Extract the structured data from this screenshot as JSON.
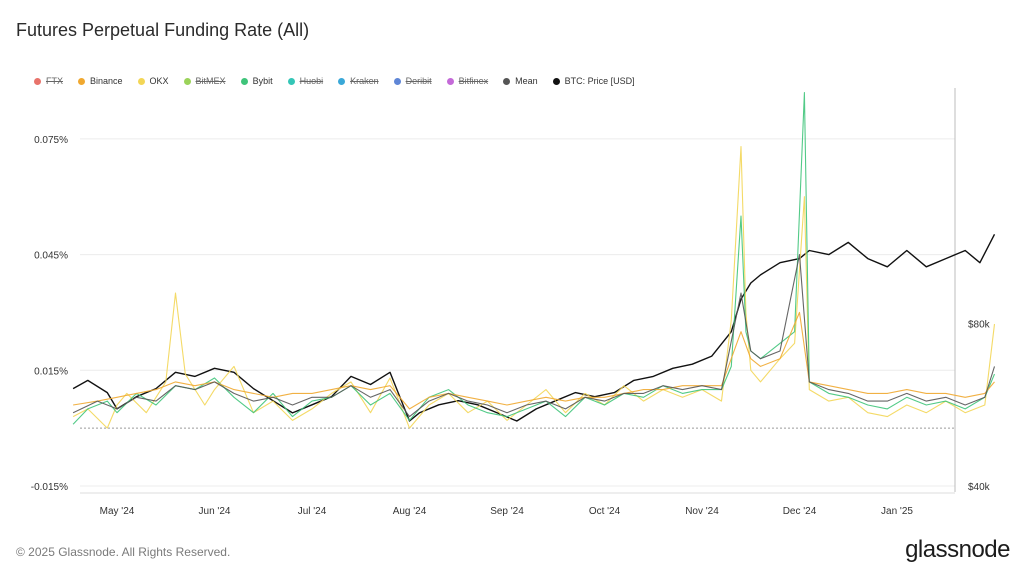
{
  "title": "Futures Perpetual Funding Rate (All)",
  "legend": [
    {
      "label": "FTX",
      "color": "#e8736b",
      "struck": true
    },
    {
      "label": "Binance",
      "color": "#f0a830",
      "struck": false
    },
    {
      "label": "OKX",
      "color": "#f3d656",
      "struck": false
    },
    {
      "label": "BitMEX",
      "color": "#9bd35a",
      "struck": true
    },
    {
      "label": "Bybit",
      "color": "#3fc47a",
      "struck": false
    },
    {
      "label": "Huobi",
      "color": "#34c6b7",
      "struck": true
    },
    {
      "label": "Kraken",
      "color": "#3aa8d8",
      "struck": true
    },
    {
      "label": "Deribit",
      "color": "#5f86d6",
      "struck": true
    },
    {
      "label": "Bitfinex",
      "color": "#c46ad8",
      "struck": true
    },
    {
      "label": "Mean",
      "color": "#555555",
      "struck": false
    },
    {
      "label": "BTC: Price [USD]",
      "color": "#111111",
      "struck": false
    }
  ],
  "footer": "© 2025 Glassnode. All Rights Reserved.",
  "brand": "glassnode",
  "chart_data": {
    "type": "line",
    "x_labels": [
      "May '24",
      "Jun '24",
      "Jul '24",
      "Aug '24",
      "Sep '24",
      "Oct '24",
      "Nov '24",
      "Dec '24",
      "Jan '25"
    ],
    "y_left_ticks": [
      "0.075%",
      "0.045%",
      "0.015%",
      "-0.015%"
    ],
    "y_left_values": [
      0.075,
      0.045,
      0.015,
      -0.015
    ],
    "y_left_range": [
      -0.015,
      0.09
    ],
    "y_right_ticks": [
      "$80k",
      "$40k"
    ],
    "y_right_values": [
      80000,
      40000
    ],
    "y_right_range": [
      40000,
      140000
    ],
    "x_range": [
      0,
      9.1
    ],
    "zero_line": 0.0,
    "series": [
      {
        "name": "BTC: Price [USD]",
        "axis": "right",
        "color": "#111111",
        "x": [
          -0.45,
          -0.3,
          -0.1,
          0.0,
          0.2,
          0.4,
          0.6,
          0.8,
          1.0,
          1.2,
          1.4,
          1.6,
          1.8,
          2.0,
          2.2,
          2.4,
          2.6,
          2.8,
          3.0,
          3.1,
          3.3,
          3.5,
          3.7,
          3.9,
          4.1,
          4.3,
          4.5,
          4.7,
          4.9,
          5.1,
          5.3,
          5.5,
          5.7,
          5.9,
          6.1,
          6.3,
          6.4,
          6.5,
          6.6,
          6.8,
          7.0,
          7.1,
          7.3,
          7.5,
          7.7,
          7.9,
          8.1,
          8.3,
          8.5,
          8.7,
          8.85,
          9.0
        ],
        "y": [
          64000,
          66000,
          63000,
          59000,
          62000,
          64000,
          68000,
          67000,
          69000,
          68000,
          64000,
          61000,
          58000,
          60000,
          62000,
          67000,
          65000,
          68000,
          56000,
          58000,
          60000,
          61000,
          60000,
          58000,
          56000,
          59000,
          61000,
          63000,
          62000,
          63000,
          66000,
          67000,
          69000,
          70000,
          72000,
          78000,
          86000,
          90000,
          92000,
          95000,
          96000,
          98000,
          97000,
          100000,
          96000,
          94000,
          98000,
          94000,
          96000,
          98000,
          95000,
          102000
        ]
      },
      {
        "name": "OKX",
        "axis": "left",
        "color": "#f3d656",
        "x": [
          -0.45,
          -0.3,
          -0.1,
          0.0,
          0.1,
          0.3,
          0.5,
          0.6,
          0.7,
          0.9,
          1.0,
          1.2,
          1.4,
          1.6,
          1.8,
          2.0,
          2.2,
          2.4,
          2.6,
          2.8,
          3.0,
          3.2,
          3.4,
          3.6,
          3.8,
          4.0,
          4.2,
          4.4,
          4.6,
          4.8,
          5.0,
          5.2,
          5.4,
          5.6,
          5.8,
          6.0,
          6.2,
          6.3,
          6.4,
          6.45,
          6.5,
          6.6,
          6.8,
          6.95,
          7.05,
          7.1,
          7.3,
          7.5,
          7.7,
          7.9,
          8.1,
          8.3,
          8.5,
          8.7,
          8.9,
          9.0
        ],
        "y": [
          0.003,
          0.005,
          0.0,
          0.006,
          0.009,
          0.004,
          0.012,
          0.035,
          0.014,
          0.006,
          0.01,
          0.016,
          0.004,
          0.007,
          0.002,
          0.005,
          0.009,
          0.012,
          0.004,
          0.013,
          0.0,
          0.006,
          0.009,
          0.004,
          0.007,
          0.002,
          0.006,
          0.01,
          0.004,
          0.009,
          0.006,
          0.011,
          0.007,
          0.01,
          0.008,
          0.01,
          0.007,
          0.028,
          0.073,
          0.03,
          0.015,
          0.012,
          0.018,
          0.022,
          0.06,
          0.01,
          0.007,
          0.008,
          0.004,
          0.003,
          0.006,
          0.004,
          0.007,
          0.004,
          0.006,
          0.027
        ]
      },
      {
        "name": "Bybit",
        "axis": "left",
        "color": "#3fc47a",
        "x": [
          -0.45,
          -0.3,
          -0.1,
          0.0,
          0.2,
          0.4,
          0.6,
          0.8,
          1.0,
          1.2,
          1.4,
          1.6,
          1.8,
          2.0,
          2.2,
          2.4,
          2.6,
          2.8,
          3.0,
          3.2,
          3.4,
          3.6,
          3.8,
          4.0,
          4.2,
          4.4,
          4.6,
          4.8,
          5.0,
          5.2,
          5.4,
          5.6,
          5.8,
          6.0,
          6.2,
          6.3,
          6.4,
          6.45,
          6.5,
          6.6,
          6.8,
          6.95,
          7.05,
          7.1,
          7.3,
          7.5,
          7.7,
          7.9,
          8.1,
          8.3,
          8.5,
          8.7,
          8.9,
          9.0
        ],
        "y": [
          0.001,
          0.005,
          0.007,
          0.004,
          0.009,
          0.006,
          0.011,
          0.01,
          0.013,
          0.008,
          0.004,
          0.009,
          0.003,
          0.007,
          0.008,
          0.011,
          0.006,
          0.009,
          0.002,
          0.008,
          0.01,
          0.006,
          0.004,
          0.003,
          0.005,
          0.007,
          0.003,
          0.008,
          0.006,
          0.009,
          0.008,
          0.011,
          0.009,
          0.01,
          0.01,
          0.016,
          0.055,
          0.025,
          0.02,
          0.018,
          0.022,
          0.025,
          0.087,
          0.012,
          0.009,
          0.008,
          0.006,
          0.005,
          0.008,
          0.006,
          0.007,
          0.005,
          0.008,
          0.014
        ]
      },
      {
        "name": "Binance",
        "axis": "left",
        "color": "#f0a830",
        "x": [
          -0.45,
          -0.2,
          0.0,
          0.2,
          0.4,
          0.6,
          0.8,
          1.0,
          1.2,
          1.4,
          1.6,
          1.8,
          2.0,
          2.2,
          2.4,
          2.6,
          2.8,
          3.0,
          3.2,
          3.4,
          3.6,
          3.8,
          4.0,
          4.2,
          4.4,
          4.6,
          4.8,
          5.0,
          5.2,
          5.4,
          5.6,
          5.8,
          6.0,
          6.2,
          6.4,
          6.5,
          6.6,
          6.8,
          7.0,
          7.1,
          7.3,
          7.5,
          7.7,
          7.9,
          8.1,
          8.3,
          8.5,
          8.7,
          8.9,
          9.0
        ],
        "y": [
          0.006,
          0.007,
          0.008,
          0.009,
          0.01,
          0.012,
          0.011,
          0.012,
          0.01,
          0.009,
          0.008,
          0.009,
          0.009,
          0.01,
          0.011,
          0.01,
          0.011,
          0.005,
          0.008,
          0.009,
          0.008,
          0.007,
          0.006,
          0.007,
          0.008,
          0.007,
          0.008,
          0.008,
          0.009,
          0.01,
          0.01,
          0.011,
          0.011,
          0.011,
          0.025,
          0.018,
          0.016,
          0.018,
          0.03,
          0.012,
          0.011,
          0.01,
          0.009,
          0.009,
          0.01,
          0.009,
          0.009,
          0.008,
          0.009,
          0.012
        ]
      },
      {
        "name": "Mean",
        "axis": "left",
        "color": "#555555",
        "x": [
          -0.45,
          -0.2,
          0.0,
          0.2,
          0.4,
          0.6,
          0.8,
          1.0,
          1.2,
          1.4,
          1.6,
          1.8,
          2.0,
          2.2,
          2.4,
          2.6,
          2.8,
          3.0,
          3.2,
          3.4,
          3.6,
          3.8,
          4.0,
          4.2,
          4.4,
          4.6,
          4.8,
          5.0,
          5.2,
          5.4,
          5.6,
          5.8,
          6.0,
          6.2,
          6.4,
          6.5,
          6.6,
          6.8,
          7.0,
          7.1,
          7.3,
          7.5,
          7.7,
          7.9,
          8.1,
          8.3,
          8.5,
          8.7,
          8.9,
          9.0
        ],
        "y": [
          0.004,
          0.007,
          0.005,
          0.008,
          0.007,
          0.011,
          0.01,
          0.012,
          0.009,
          0.007,
          0.008,
          0.006,
          0.008,
          0.008,
          0.011,
          0.008,
          0.01,
          0.003,
          0.007,
          0.009,
          0.007,
          0.006,
          0.004,
          0.006,
          0.007,
          0.005,
          0.008,
          0.007,
          0.009,
          0.009,
          0.011,
          0.01,
          0.011,
          0.01,
          0.035,
          0.02,
          0.018,
          0.02,
          0.045,
          0.012,
          0.01,
          0.009,
          0.007,
          0.007,
          0.009,
          0.007,
          0.008,
          0.006,
          0.008,
          0.016
        ]
      }
    ]
  }
}
